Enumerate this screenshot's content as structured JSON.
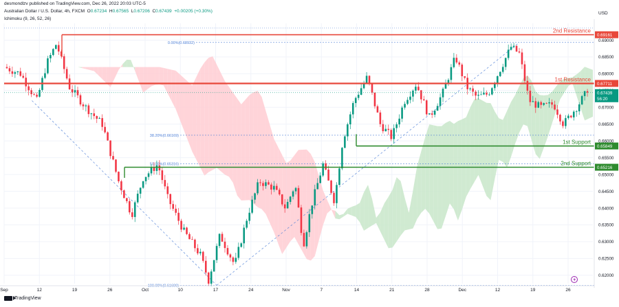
{
  "header": {
    "published": "desmondlzv published on TradingView.com, Dec 26, 2022 20:03 UTC-5",
    "symbol": "Australian Dollar / U.S. Dollar, 4h, FXCM",
    "ohlc": {
      "o_label": "O",
      "o": "0.67234",
      "h_label": "H",
      "h": "0.67565",
      "l_label": "L",
      "l": "0.67206",
      "c_label": "C",
      "c": "0.67439",
      "change": "+0.00205 (+0.30%)"
    },
    "indicator": "Ichimoku (9, 26, 52, 26)"
  },
  "currency": "USD",
  "footer": {
    "brand": "TradingView"
  },
  "colors": {
    "bull": "#089981",
    "bear": "#f23645",
    "resistance": "#e8473a",
    "support": "#2e8b2e",
    "cloud_bear": "#ffcdd2",
    "cloud_bull": "#c8e6c9",
    "fib": "#4d7fd6",
    "price_tag": "#089981"
  },
  "chart_data": {
    "type": "candlestick",
    "symbol": "AUDUSD",
    "timeframe": "4h",
    "ylim": [
      0.6175,
      0.695
    ],
    "y_ticks": [
      "0.69000",
      "0.68500",
      "0.68000",
      "0.67500",
      "0.67000",
      "0.66500",
      "0.66000",
      "0.65500",
      "0.65000",
      "0.64500",
      "0.64000",
      "0.63500",
      "0.63000",
      "0.62500",
      "0.62000"
    ],
    "x_ticks": [
      "Sep",
      "12",
      "19",
      "26",
      "Oct",
      "10",
      "17",
      "24",
      "Nov",
      "7",
      "14",
      "21",
      "28",
      "Dec",
      "12",
      "19",
      "26"
    ],
    "levels": [
      {
        "name": "2nd Resistance",
        "price": 0.69161,
        "label": "0.69161",
        "color": "#e8473a"
      },
      {
        "name": "1st Resistance",
        "price": 0.67711,
        "label": "0.67711",
        "color": "#e8473a"
      },
      {
        "name": "1st Support",
        "price": 0.65849,
        "label": "0.65849",
        "color": "#2e8b2e"
      },
      {
        "name": "2nd Support",
        "price": 0.65216,
        "label": "0.65216",
        "color": "#2e8b2e"
      }
    ],
    "fibs": [
      {
        "label": "0.00%(0.68932)",
        "price": 0.68932
      },
      {
        "label": "38.20%(0.66169)",
        "price": 0.66169
      },
      {
        "label": "50.00%(0.65316)",
        "price": 0.65316
      },
      {
        "label": "100.00%(0.61699)",
        "price": 0.61699
      }
    ],
    "current_price": {
      "label": "0.67439",
      "timer": "56:20",
      "price": 0.67439
    },
    "top_dotted_price": 0.6936,
    "anchors": [
      {
        "x": 0.0,
        "y": 0.682
      },
      {
        "x": 1.0,
        "y": 0.68
      },
      {
        "x": 2.0,
        "y": 0.672
      },
      {
        "x": 2.6,
        "y": 0.683
      },
      {
        "x": 3.2,
        "y": 0.689
      },
      {
        "x": 4.0,
        "y": 0.676
      },
      {
        "x": 5.0,
        "y": 0.67
      },
      {
        "x": 6.0,
        "y": 0.665
      },
      {
        "x": 7.0,
        "y": 0.648
      },
      {
        "x": 7.8,
        "y": 0.638
      },
      {
        "x": 8.5,
        "y": 0.649
      },
      {
        "x": 9.4,
        "y": 0.653
      },
      {
        "x": 10.0,
        "y": 0.643
      },
      {
        "x": 11.0,
        "y": 0.633
      },
      {
        "x": 12.0,
        "y": 0.626
      },
      {
        "x": 12.5,
        "y": 0.6185
      },
      {
        "x": 13.2,
        "y": 0.632
      },
      {
        "x": 14.1,
        "y": 0.623
      },
      {
        "x": 14.9,
        "y": 0.638
      },
      {
        "x": 15.6,
        "y": 0.648
      },
      {
        "x": 16.5,
        "y": 0.646
      },
      {
        "x": 17.2,
        "y": 0.64
      },
      {
        "x": 17.8,
        "y": 0.647
      },
      {
        "x": 18.3,
        "y": 0.629
      },
      {
        "x": 18.8,
        "y": 0.641
      },
      {
        "x": 19.5,
        "y": 0.653
      },
      {
        "x": 20.2,
        "y": 0.642
      },
      {
        "x": 20.7,
        "y": 0.66
      },
      {
        "x": 21.4,
        "y": 0.672
      },
      {
        "x": 22.2,
        "y": 0.679
      },
      {
        "x": 23.0,
        "y": 0.665
      },
      {
        "x": 23.7,
        "y": 0.661
      },
      {
        "x": 24.5,
        "y": 0.672
      },
      {
        "x": 25.2,
        "y": 0.677
      },
      {
        "x": 26.0,
        "y": 0.667
      },
      {
        "x": 26.8,
        "y": 0.674
      },
      {
        "x": 27.6,
        "y": 0.685
      },
      {
        "x": 28.3,
        "y": 0.676
      },
      {
        "x": 28.9,
        "y": 0.673
      },
      {
        "x": 29.6,
        "y": 0.674
      },
      {
        "x": 30.4,
        "y": 0.682
      },
      {
        "x": 31.0,
        "y": 0.688
      },
      {
        "x": 31.5,
        "y": 0.686
      },
      {
        "x": 32.1,
        "y": 0.672
      },
      {
        "x": 32.8,
        "y": 0.67
      },
      {
        "x": 33.6,
        "y": 0.671
      },
      {
        "x": 34.2,
        "y": 0.665
      },
      {
        "x": 35.0,
        "y": 0.67
      },
      {
        "x": 35.6,
        "y": 0.6744
      }
    ]
  }
}
